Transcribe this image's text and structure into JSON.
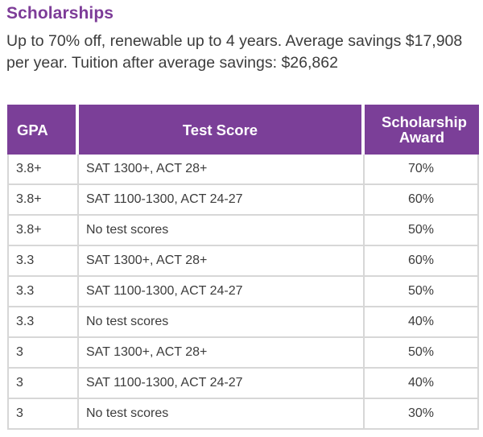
{
  "title": "Scholarships",
  "subtitle": "Up to 70% off, renewable up to 4 years. Average savings $17,908 per year. Tuition after average savings: $26,862",
  "table": {
    "headers": [
      "GPA",
      "Test Score",
      "Scholarship Award"
    ],
    "rows": [
      [
        "3.8+",
        "SAT 1300+, ACT 28+",
        "70%"
      ],
      [
        "3.8+",
        "SAT 1100-1300, ACT 24-27",
        "60%"
      ],
      [
        "3.8+",
        "No test scores",
        "50%"
      ],
      [
        "3.3",
        "SAT 1300+, ACT 28+",
        "60%"
      ],
      [
        "3.3",
        "SAT 1100-1300, ACT 24-27",
        "50%"
      ],
      [
        "3.3",
        "No test scores",
        "40%"
      ],
      [
        "3",
        "SAT 1300+, ACT 28+",
        "50%"
      ],
      [
        "3",
        "SAT 1100-1300, ACT 24-27",
        "40%"
      ],
      [
        "3",
        "No test scores",
        "30%"
      ]
    ]
  },
  "colors": {
    "accent": "#7b3f98",
    "border": "#d7d7d7",
    "text": "#3c3c3c"
  }
}
